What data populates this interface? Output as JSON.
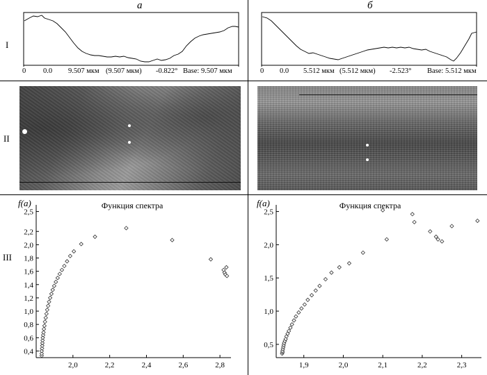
{
  "figure": {
    "col_labels": [
      "а",
      "б"
    ],
    "row_labels": [
      "I",
      "II",
      "III"
    ]
  },
  "profiles": [
    {
      "origin": "0",
      "start": "0.0",
      "length": "9.507 мкм",
      "length_paren": "(9.507 мкм)",
      "angle": "-0.822°",
      "base": "Base: 9.507 мкм"
    },
    {
      "origin": "0",
      "start": "0.0",
      "length": "5.512 мкм",
      "length_paren": "(5.512 мкм)",
      "angle": "-2.523°",
      "base": "Base: 5.512 мкм"
    }
  ],
  "chart_data": [
    {
      "type": "scatter",
      "title": "Функция спектра",
      "ylabel": "f(a)",
      "xlabel": "",
      "xlim": [
        1.8,
        2.86
      ],
      "ylim": [
        0.3,
        2.6
      ],
      "xticks": [
        "2,0",
        "2,2",
        "2,4",
        "2,6",
        "2,8"
      ],
      "yticks": [
        "0,4",
        "0,6",
        "0,8",
        "1,0",
        "1,2",
        "1,4",
        "1,6",
        "1,8",
        "2,0",
        "2,2",
        "2,5"
      ],
      "grid": false,
      "marker": "diamond",
      "x": [
        1.83,
        1.83,
        1.83,
        1.832,
        1.833,
        1.834,
        1.835,
        1.836,
        1.838,
        1.84,
        1.842,
        1.845,
        1.848,
        1.852,
        1.856,
        1.86,
        1.865,
        1.87,
        1.876,
        1.883,
        1.89,
        1.898,
        1.907,
        1.917,
        1.928,
        1.94,
        1.953,
        1.968,
        1.985,
        2.005,
        2.045,
        2.12,
        2.29,
        2.54,
        2.75,
        2.82,
        2.825,
        2.83,
        2.835,
        2.838
      ],
      "y": [
        0.33,
        0.36,
        0.4,
        0.44,
        0.48,
        0.52,
        0.56,
        0.6,
        0.64,
        0.68,
        0.73,
        0.78,
        0.84,
        0.9,
        0.96,
        1.02,
        1.08,
        1.14,
        1.2,
        1.26,
        1.32,
        1.38,
        1.44,
        1.5,
        1.56,
        1.62,
        1.68,
        1.75,
        1.83,
        1.9,
        2.01,
        2.12,
        2.25,
        2.07,
        1.78,
        1.62,
        1.58,
        1.55,
        1.66,
        1.53
      ]
    },
    {
      "type": "scatter",
      "title": "Функция спектра",
      "ylabel": "f(a)",
      "xlabel": "",
      "xlim": [
        1.83,
        2.35
      ],
      "ylim": [
        0.3,
        2.6
      ],
      "xticks": [
        "1,9",
        "2,0",
        "2,1",
        "2,2",
        "2,3"
      ],
      "yticks": [
        "0,5",
        "1,0",
        "1,5",
        "2,0",
        "2,5"
      ],
      "grid": false,
      "marker": "diamond",
      "x": [
        1.845,
        1.846,
        1.846,
        1.847,
        1.848,
        1.849,
        1.85,
        1.852,
        1.854,
        1.856,
        1.859,
        1.862,
        1.866,
        1.87,
        1.875,
        1.88,
        1.887,
        1.894,
        1.902,
        1.91,
        1.92,
        1.93,
        1.94,
        1.955,
        1.97,
        1.99,
        2.015,
        2.05,
        2.1,
        2.11,
        2.175,
        2.18,
        2.22,
        2.235,
        2.24,
        2.25,
        2.275,
        2.34
      ],
      "y": [
        0.36,
        0.38,
        0.4,
        0.43,
        0.46,
        0.49,
        0.52,
        0.55,
        0.58,
        0.62,
        0.66,
        0.7,
        0.75,
        0.8,
        0.86,
        0.92,
        0.98,
        1.04,
        1.1,
        1.17,
        1.24,
        1.31,
        1.38,
        1.48,
        1.58,
        1.66,
        1.72,
        1.88,
        2.52,
        2.08,
        2.46,
        2.34,
        2.2,
        2.12,
        2.08,
        2.05,
        2.28,
        2.36
      ]
    }
  ]
}
